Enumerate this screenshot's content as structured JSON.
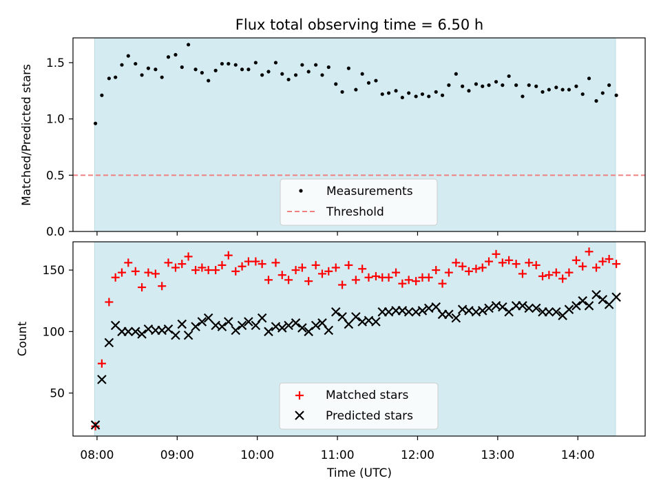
{
  "figure": {
    "title": "Flux total observing time = 6.50 h",
    "xlabel": "Time (UTC)",
    "x_ticks": [
      "08:00",
      "09:00",
      "10:00",
      "11:00",
      "12:00",
      "13:00",
      "14:00"
    ],
    "x_tick_hours": [
      8,
      9,
      10,
      11,
      12,
      13,
      14
    ],
    "xlim_hours": [
      7.7,
      14.84
    ],
    "shaded_span_hours": [
      7.97,
      14.47
    ],
    "shade_color": "#d4ebf1"
  },
  "chart_data": [
    {
      "type": "scatter",
      "ylabel": "Matched/Predicted stars",
      "ylim": [
        0,
        1.72
      ],
      "yticks": [
        "0.0",
        "0.5",
        "1.0",
        "1.5"
      ],
      "ytick_values": [
        0,
        0.5,
        1.0,
        1.5
      ],
      "threshold": 0.5,
      "legend": {
        "placement": "lower-center",
        "entries": [
          "Measurements",
          "Threshold"
        ]
      },
      "series": [
        {
          "name": "Measurements",
          "marker": "dot",
          "color": "#000000",
          "x_hours": [
            7.98,
            8.06,
            8.15,
            8.23,
            8.31,
            8.39,
            8.48,
            8.56,
            8.64,
            8.73,
            8.81,
            8.89,
            8.98,
            9.06,
            9.14,
            9.23,
            9.31,
            9.39,
            9.48,
            9.56,
            9.64,
            9.73,
            9.81,
            9.89,
            9.98,
            10.06,
            10.14,
            10.23,
            10.31,
            10.39,
            10.48,
            10.56,
            10.64,
            10.73,
            10.81,
            10.89,
            10.98,
            11.06,
            11.14,
            11.23,
            11.31,
            11.39,
            11.48,
            11.56,
            11.64,
            11.73,
            11.81,
            11.89,
            11.98,
            12.06,
            12.14,
            12.23,
            12.31,
            12.39,
            12.48,
            12.56,
            12.64,
            12.73,
            12.81,
            12.89,
            12.98,
            13.06,
            13.14,
            13.23,
            13.31,
            13.39,
            13.48,
            13.56,
            13.64,
            13.73,
            13.81,
            13.89,
            13.98,
            14.06,
            14.14,
            14.23,
            14.31,
            14.39,
            14.48
          ],
          "y": [
            0.96,
            1.21,
            1.36,
            1.37,
            1.48,
            1.56,
            1.49,
            1.39,
            1.45,
            1.44,
            1.37,
            1.55,
            1.57,
            1.46,
            1.66,
            1.44,
            1.41,
            1.34,
            1.43,
            1.49,
            1.49,
            1.48,
            1.44,
            1.44,
            1.5,
            1.39,
            1.42,
            1.5,
            1.4,
            1.35,
            1.39,
            1.48,
            1.42,
            1.48,
            1.39,
            1.46,
            1.31,
            1.24,
            1.45,
            1.26,
            1.4,
            1.32,
            1.34,
            1.22,
            1.23,
            1.25,
            1.19,
            1.23,
            1.2,
            1.22,
            1.2,
            1.24,
            1.21,
            1.3,
            1.4,
            1.29,
            1.25,
            1.31,
            1.29,
            1.3,
            1.33,
            1.3,
            1.38,
            1.3,
            1.2,
            1.3,
            1.29,
            1.24,
            1.26,
            1.28,
            1.26,
            1.26,
            1.29,
            1.22,
            1.36,
            1.16,
            1.23,
            1.3,
            1.21
          ]
        }
      ]
    },
    {
      "type": "scatter",
      "ylabel": "Count",
      "ylim": [
        15,
        173
      ],
      "yticks": [
        "50",
        "100",
        "150"
      ],
      "ytick_values": [
        50,
        100,
        150
      ],
      "legend": {
        "placement": "lower-center",
        "entries": [
          "Matched stars",
          "Predicted stars"
        ]
      },
      "series": [
        {
          "name": "Matched stars",
          "marker": "plus",
          "color": "#ff0000",
          "x_hours": [
            7.98,
            8.06,
            8.15,
            8.23,
            8.31,
            8.39,
            8.48,
            8.56,
            8.64,
            8.73,
            8.81,
            8.89,
            8.98,
            9.06,
            9.14,
            9.23,
            9.31,
            9.39,
            9.48,
            9.56,
            9.64,
            9.73,
            9.81,
            9.89,
            9.98,
            10.06,
            10.14,
            10.23,
            10.31,
            10.39,
            10.48,
            10.56,
            10.64,
            10.73,
            10.81,
            10.89,
            10.98,
            11.06,
            11.14,
            11.23,
            11.31,
            11.39,
            11.48,
            11.56,
            11.64,
            11.73,
            11.81,
            11.89,
            11.98,
            12.06,
            12.14,
            12.23,
            12.31,
            12.39,
            12.48,
            12.56,
            12.64,
            12.73,
            12.81,
            12.89,
            12.98,
            13.06,
            13.14,
            13.23,
            13.31,
            13.39,
            13.48,
            13.56,
            13.64,
            13.73,
            13.81,
            13.89,
            13.98,
            14.06,
            14.14,
            14.23,
            14.31,
            14.39,
            14.48
          ],
          "y": [
            23,
            74,
            124,
            144,
            148,
            156,
            149,
            136,
            148,
            147,
            137,
            156,
            152,
            155,
            161,
            150,
            152,
            150,
            150,
            154,
            162,
            149,
            153,
            157,
            157,
            155,
            142,
            156,
            146,
            142,
            150,
            152,
            141,
            154,
            147,
            149,
            152,
            138,
            154,
            142,
            151,
            144,
            145,
            144,
            144,
            148,
            139,
            142,
            141,
            144,
            144,
            150,
            139,
            148,
            156,
            153,
            149,
            151,
            152,
            157,
            163,
            156,
            158,
            155,
            147,
            156,
            154,
            145,
            146,
            148,
            143,
            148,
            158,
            153,
            165,
            152,
            157,
            159,
            155
          ]
        },
        {
          "name": "Predicted stars",
          "marker": "x",
          "color": "#000000",
          "x_hours": [
            7.98,
            8.06,
            8.15,
            8.23,
            8.31,
            8.39,
            8.48,
            8.56,
            8.64,
            8.73,
            8.81,
            8.89,
            8.98,
            9.06,
            9.14,
            9.23,
            9.31,
            9.39,
            9.48,
            9.56,
            9.64,
            9.73,
            9.81,
            9.89,
            9.98,
            10.06,
            10.14,
            10.23,
            10.31,
            10.39,
            10.48,
            10.56,
            10.64,
            10.73,
            10.81,
            10.89,
            10.98,
            11.06,
            11.14,
            11.23,
            11.31,
            11.39,
            11.48,
            11.56,
            11.64,
            11.73,
            11.81,
            11.89,
            11.98,
            12.06,
            12.14,
            12.23,
            12.31,
            12.39,
            12.48,
            12.56,
            12.64,
            12.73,
            12.81,
            12.89,
            12.98,
            13.06,
            13.14,
            13.23,
            13.31,
            13.39,
            13.48,
            13.56,
            13.64,
            13.73,
            13.81,
            13.89,
            13.98,
            14.06,
            14.14,
            14.23,
            14.31,
            14.39,
            14.48
          ],
          "y": [
            24,
            61,
            91,
            105,
            100,
            100,
            100,
            98,
            102,
            101,
            101,
            102,
            97,
            106,
            97,
            104,
            108,
            111,
            105,
            104,
            108,
            101,
            105,
            108,
            105,
            111,
            100,
            104,
            103,
            105,
            107,
            103,
            100,
            105,
            107,
            101,
            116,
            112,
            106,
            112,
            108,
            109,
            108,
            116,
            116,
            117,
            117,
            116,
            116,
            117,
            119,
            120,
            114,
            114,
            111,
            118,
            117,
            116,
            117,
            119,
            121,
            120,
            116,
            121,
            121,
            119,
            119,
            116,
            116,
            116,
            113,
            118,
            121,
            125,
            121,
            130,
            126,
            122,
            128
          ]
        }
      ]
    }
  ]
}
